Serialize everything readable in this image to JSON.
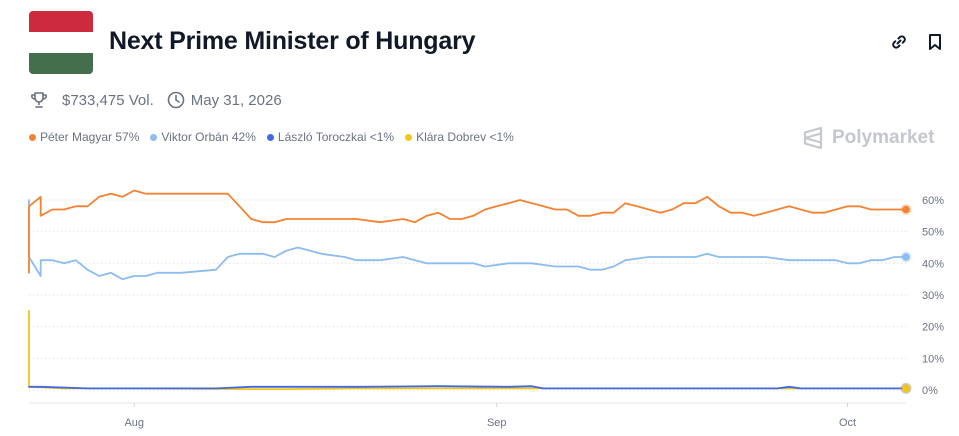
{
  "market": {
    "title": "Next Prime Minister of Hungary",
    "volume": "$733,475 Vol.",
    "end_date": "May 31, 2026",
    "flag_colors": [
      "#cd2a3e",
      "#ffffff",
      "#436f4d"
    ]
  },
  "header_icons": {
    "link": "link-icon",
    "bookmark": "bookmark-icon"
  },
  "meta_icons": {
    "volume": "trophy-icon",
    "date": "clock-icon"
  },
  "brand": {
    "name": "Polymarket",
    "color": "#c4c8ce"
  },
  "legend": [
    {
      "label": "Péter Magyar 57%",
      "color": "#f58231"
    },
    {
      "label": "Viktor Orbán 42%",
      "color": "#8cbcf0"
    },
    {
      "label": "László Toroczkai <1%",
      "color": "#4169e1"
    },
    {
      "label": "Klára Dobrev <1%",
      "color": "#f5c518"
    }
  ],
  "chart_data": {
    "type": "line",
    "y_tick_labels": [
      "60%",
      "50%",
      "40%",
      "30%",
      "20%",
      "10%",
      "0%"
    ],
    "x_tick_labels": [
      "Aug",
      "Sep",
      "Oct"
    ],
    "x_range": [
      "2025-07-23",
      "2025-10-06"
    ],
    "x_ticks": [
      "2025-08-01",
      "2025-09-01",
      "2025-10-01"
    ],
    "ylim": [
      0,
      65
    ],
    "grid": "horizontal-dotted",
    "series": [
      {
        "name": "Péter Magyar",
        "color": "#f58231",
        "points": [
          [
            "2025-07-23",
            37
          ],
          [
            "2025-07-23",
            58
          ],
          [
            "2025-07-24",
            61
          ],
          [
            "2025-07-24",
            55
          ],
          [
            "2025-07-25",
            57
          ],
          [
            "2025-07-26",
            57
          ],
          [
            "2025-07-27",
            58
          ],
          [
            "2025-07-28",
            58
          ],
          [
            "2025-07-29",
            61
          ],
          [
            "2025-07-30",
            62
          ],
          [
            "2025-07-31",
            61
          ],
          [
            "2025-08-01",
            63
          ],
          [
            "2025-08-02",
            62
          ],
          [
            "2025-08-04",
            62
          ],
          [
            "2025-08-07",
            62
          ],
          [
            "2025-08-09",
            62
          ],
          [
            "2025-08-10",
            58
          ],
          [
            "2025-08-11",
            54
          ],
          [
            "2025-08-12",
            53
          ],
          [
            "2025-08-13",
            53
          ],
          [
            "2025-08-14",
            54
          ],
          [
            "2025-08-16",
            54
          ],
          [
            "2025-08-18",
            54
          ],
          [
            "2025-08-20",
            54
          ],
          [
            "2025-08-22",
            53
          ],
          [
            "2025-08-24",
            54
          ],
          [
            "2025-08-25",
            53
          ],
          [
            "2025-08-26",
            55
          ],
          [
            "2025-08-27",
            56
          ],
          [
            "2025-08-28",
            54
          ],
          [
            "2025-08-29",
            54
          ],
          [
            "2025-08-30",
            55
          ],
          [
            "2025-08-31",
            57
          ],
          [
            "2025-09-01",
            58
          ],
          [
            "2025-09-02",
            59
          ],
          [
            "2025-09-03",
            60
          ],
          [
            "2025-09-04",
            59
          ],
          [
            "2025-09-05",
            58
          ],
          [
            "2025-09-06",
            57
          ],
          [
            "2025-09-07",
            57
          ],
          [
            "2025-09-08",
            55
          ],
          [
            "2025-09-09",
            55
          ],
          [
            "2025-09-10",
            56
          ],
          [
            "2025-09-11",
            56
          ],
          [
            "2025-09-12",
            59
          ],
          [
            "2025-09-13",
            58
          ],
          [
            "2025-09-14",
            57
          ],
          [
            "2025-09-15",
            56
          ],
          [
            "2025-09-16",
            57
          ],
          [
            "2025-09-17",
            59
          ],
          [
            "2025-09-18",
            59
          ],
          [
            "2025-09-19",
            61
          ],
          [
            "2025-09-20",
            58
          ],
          [
            "2025-09-21",
            56
          ],
          [
            "2025-09-22",
            56
          ],
          [
            "2025-09-23",
            55
          ],
          [
            "2025-09-24",
            56
          ],
          [
            "2025-09-25",
            57
          ],
          [
            "2025-09-26",
            58
          ],
          [
            "2025-09-27",
            57
          ],
          [
            "2025-09-28",
            56
          ],
          [
            "2025-09-29",
            56
          ],
          [
            "2025-09-30",
            57
          ],
          [
            "2025-10-01",
            58
          ],
          [
            "2025-10-02",
            58
          ],
          [
            "2025-10-03",
            57
          ],
          [
            "2025-10-04",
            57
          ],
          [
            "2025-10-05",
            57
          ],
          [
            "2025-10-06",
            57
          ]
        ]
      },
      {
        "name": "Viktor Orbán",
        "color": "#8cbcf0",
        "points": [
          [
            "2025-07-23",
            60
          ],
          [
            "2025-07-23",
            42
          ],
          [
            "2025-07-24",
            36
          ],
          [
            "2025-07-24",
            41
          ],
          [
            "2025-07-25",
            41
          ],
          [
            "2025-07-26",
            40
          ],
          [
            "2025-07-27",
            41
          ],
          [
            "2025-07-28",
            38
          ],
          [
            "2025-07-29",
            36
          ],
          [
            "2025-07-30",
            37
          ],
          [
            "2025-07-31",
            35
          ],
          [
            "2025-08-01",
            36
          ],
          [
            "2025-08-02",
            36
          ],
          [
            "2025-08-03",
            37
          ],
          [
            "2025-08-05",
            37
          ],
          [
            "2025-08-08",
            38
          ],
          [
            "2025-08-09",
            42
          ],
          [
            "2025-08-10",
            43
          ],
          [
            "2025-08-12",
            43
          ],
          [
            "2025-08-13",
            42
          ],
          [
            "2025-08-14",
            44
          ],
          [
            "2025-08-15",
            45
          ],
          [
            "2025-08-17",
            43
          ],
          [
            "2025-08-19",
            42
          ],
          [
            "2025-08-20",
            41
          ],
          [
            "2025-08-22",
            41
          ],
          [
            "2025-08-24",
            42
          ],
          [
            "2025-08-25",
            41
          ],
          [
            "2025-08-26",
            40
          ],
          [
            "2025-08-28",
            40
          ],
          [
            "2025-08-30",
            40
          ],
          [
            "2025-08-31",
            39
          ],
          [
            "2025-09-02",
            40
          ],
          [
            "2025-09-04",
            40
          ],
          [
            "2025-09-06",
            39
          ],
          [
            "2025-09-08",
            39
          ],
          [
            "2025-09-09",
            38
          ],
          [
            "2025-09-10",
            38
          ],
          [
            "2025-09-11",
            39
          ],
          [
            "2025-09-12",
            41
          ],
          [
            "2025-09-14",
            42
          ],
          [
            "2025-09-16",
            42
          ],
          [
            "2025-09-18",
            42
          ],
          [
            "2025-09-19",
            43
          ],
          [
            "2025-09-20",
            42
          ],
          [
            "2025-09-22",
            42
          ],
          [
            "2025-09-24",
            42
          ],
          [
            "2025-09-26",
            41
          ],
          [
            "2025-09-28",
            41
          ],
          [
            "2025-09-30",
            41
          ],
          [
            "2025-10-01",
            40
          ],
          [
            "2025-10-02",
            40
          ],
          [
            "2025-10-03",
            41
          ],
          [
            "2025-10-04",
            41
          ],
          [
            "2025-10-05",
            42
          ],
          [
            "2025-10-06",
            42
          ]
        ]
      },
      {
        "name": "László Toroczkai",
        "color": "#4169e1",
        "points": [
          [
            "2025-07-23",
            1
          ],
          [
            "2025-07-24",
            1
          ],
          [
            "2025-07-28",
            0.5
          ],
          [
            "2025-08-05",
            0.5
          ],
          [
            "2025-08-08",
            0.5
          ],
          [
            "2025-08-11",
            1
          ],
          [
            "2025-08-15",
            1
          ],
          [
            "2025-08-20",
            1
          ],
          [
            "2025-08-27",
            1.2
          ],
          [
            "2025-09-02",
            1
          ],
          [
            "2025-09-04",
            1.2
          ],
          [
            "2025-09-05",
            0.5
          ],
          [
            "2025-09-15",
            0.5
          ],
          [
            "2025-09-25",
            0.5
          ],
          [
            "2025-09-26",
            1
          ],
          [
            "2025-09-27",
            0.5
          ],
          [
            "2025-10-06",
            0.5
          ]
        ]
      },
      {
        "name": "Klára Dobrev",
        "color": "#f5c518",
        "points": [
          [
            "2025-07-23",
            25
          ],
          [
            "2025-07-23",
            1
          ],
          [
            "2025-07-26",
            0.5
          ],
          [
            "2025-08-01",
            0.5
          ],
          [
            "2025-08-11",
            0.3
          ],
          [
            "2025-08-14",
            0.3
          ],
          [
            "2025-08-20",
            0.5
          ],
          [
            "2025-09-01",
            0.5
          ],
          [
            "2025-09-10",
            0.5
          ],
          [
            "2025-10-06",
            0.5
          ]
        ]
      }
    ]
  }
}
